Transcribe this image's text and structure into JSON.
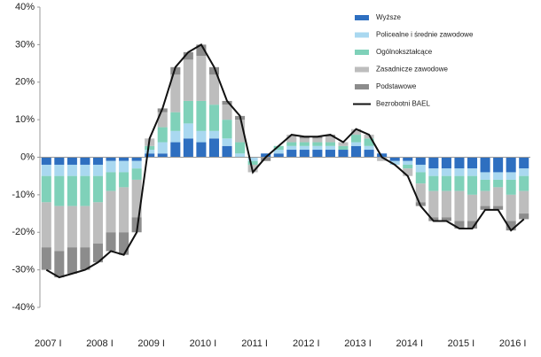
{
  "chart_data": {
    "type": "bar",
    "stacked": true,
    "categories": [
      "2007 I",
      null,
      null,
      null,
      "2008 I",
      null,
      null,
      null,
      "2009 I",
      null,
      null,
      null,
      "2010 I",
      null,
      null,
      null,
      "2011 I",
      null,
      null,
      null,
      "2012 I",
      null,
      null,
      null,
      "2013 I",
      null,
      null,
      null,
      "2014 I",
      null,
      null,
      null,
      "2015 I",
      null,
      null,
      null,
      "2016 I",
      null
    ],
    "ylim": [
      -40,
      40
    ],
    "yticks": [
      {
        "value": -40,
        "label": "-40%"
      },
      {
        "value": -30,
        "label": "-30%"
      },
      {
        "value": -20,
        "label": "-20%"
      },
      {
        "value": -10,
        "label": "-10%"
      },
      {
        "value": 0,
        "label": "0%"
      },
      {
        "value": 10,
        "label": "10%"
      },
      {
        "value": 20,
        "label": "20%"
      },
      {
        "value": 30,
        "label": "30%"
      },
      {
        "value": 40,
        "label": "40%"
      }
    ],
    "series": [
      {
        "name": "Wyższe",
        "type": "bar",
        "color": "#2e6fc0",
        "values": [
          -2,
          -2,
          -2,
          -2,
          -2,
          -1,
          -1,
          -1,
          1,
          1,
          4,
          5,
          4,
          5,
          3,
          0,
          0,
          1,
          1,
          2,
          2,
          2,
          2,
          2,
          3,
          2,
          1,
          -1,
          -1,
          -2,
          -3,
          -3,
          -3,
          -3,
          -4,
          -4,
          -4,
          -3
        ]
      },
      {
        "name": "Policealne i średnie zawodowe",
        "type": "bar",
        "color": "#a9d8f0",
        "values": [
          -3,
          -3,
          -3,
          -3,
          -3,
          -3,
          -3,
          -2,
          1,
          3,
          3,
          4,
          3,
          2,
          2,
          1,
          -1,
          0,
          1,
          1,
          1,
          1,
          1,
          0,
          1,
          1,
          0,
          -1,
          -1,
          -2,
          -2,
          -2,
          -2,
          -2,
          -2,
          -2,
          -2,
          -2
        ]
      },
      {
        "name": "Ogólnokształcące",
        "type": "bar",
        "color": "#7fd1b9",
        "values": [
          -7,
          -8,
          -8,
          -8,
          -7,
          -5,
          -4,
          -3,
          1,
          4,
          5,
          6,
          8,
          7,
          5,
          3,
          -1,
          0,
          1,
          1,
          1,
          1,
          1,
          1,
          2,
          2,
          0,
          0,
          -1,
          -3,
          -4,
          -4,
          -4,
          -5,
          -3,
          -2,
          -4,
          -4
        ]
      },
      {
        "name": "Zasadnicze zawodowe",
        "type": "bar",
        "color": "#bdbdbd",
        "values": [
          -12,
          -12,
          -11,
          -11,
          -11,
          -11,
          -12,
          -10,
          2,
          4,
          10,
          11,
          12,
          8,
          4,
          6,
          -2,
          0,
          0,
          2,
          1,
          1,
          1.5,
          1,
          1.5,
          1,
          -1,
          0,
          -2,
          -5,
          -7,
          -7,
          -8,
          -7,
          -4,
          -5,
          -7,
          -6
        ]
      },
      {
        "name": "Podstawowe",
        "type": "bar",
        "color": "#8c8c8c",
        "values": [
          -6,
          -7,
          -7,
          -6,
          -5,
          -5,
          -6,
          -4,
          0,
          1,
          2,
          2,
          3,
          2,
          1,
          1,
          0,
          -1,
          0,
          0,
          0.5,
          0.5,
          0.5,
          0,
          0,
          0,
          0,
          0,
          0,
          -1,
          -1,
          -1,
          -2,
          -2,
          -1,
          -1,
          -2.5,
          -1.5
        ]
      },
      {
        "name": "Bezrobotni BAEL",
        "type": "line",
        "color": "#111111",
        "values": [
          -30,
          -32,
          -31,
          -30,
          -28,
          -25,
          -26,
          -20,
          5,
          13,
          24,
          28,
          30,
          24,
          15,
          11,
          -4,
          0,
          3,
          6,
          5.5,
          5.5,
          6,
          4,
          7.5,
          6,
          0,
          -2,
          -5,
          -13,
          -17,
          -17,
          -19,
          -19,
          -14,
          -14,
          -19.5,
          -16.5
        ]
      }
    ]
  }
}
